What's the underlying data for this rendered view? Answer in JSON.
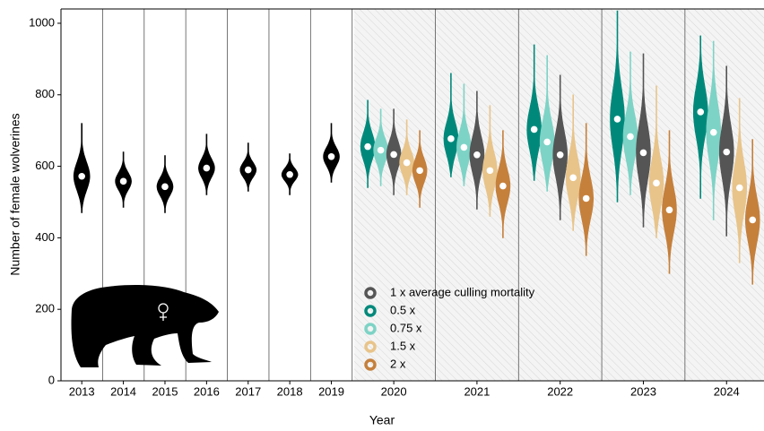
{
  "chart_data": {
    "type": "violin",
    "xlabel": "Year",
    "ylabel": "Number of female wolverines",
    "categories": [
      "2013",
      "2014",
      "2015",
      "2016",
      "2017",
      "2018",
      "2019",
      "2020",
      "2021",
      "2022",
      "2023",
      "2024"
    ],
    "ylim": [
      0,
      1040
    ],
    "yticks": [
      0,
      200,
      400,
      600,
      800,
      1000
    ],
    "legend_position": "lower center",
    "legend_order": [
      3,
      1,
      2,
      4,
      5
    ],
    "series": [
      {
        "color": "#000000",
        "values": [
          572,
          558,
          543,
          595,
          590,
          577,
          627,
          null,
          null,
          null,
          null,
          null
        ],
        "low": [
          470,
          485,
          470,
          520,
          530,
          520,
          555,
          null,
          null,
          null,
          null,
          null
        ],
        "high": [
          720,
          640,
          630,
          690,
          665,
          635,
          720,
          null,
          null,
          null,
          null,
          null
        ]
      },
      {
        "name": "0.5 x",
        "color": "#00897b",
        "values": [
          null,
          null,
          null,
          null,
          null,
          null,
          null,
          655,
          677,
          703,
          732,
          752
        ],
        "low": [
          null,
          null,
          null,
          null,
          null,
          null,
          null,
          540,
          570,
          560,
          500,
          510
        ],
        "high": [
          null,
          null,
          null,
          null,
          null,
          null,
          null,
          785,
          860,
          940,
          1035,
          965
        ]
      },
      {
        "name": "0.75 x",
        "color": "#7dd3c6",
        "values": [
          null,
          null,
          null,
          null,
          null,
          null,
          null,
          645,
          653,
          668,
          683,
          695
        ],
        "low": [
          null,
          null,
          null,
          null,
          null,
          null,
          null,
          545,
          545,
          530,
          520,
          450
        ],
        "high": [
          null,
          null,
          null,
          null,
          null,
          null,
          null,
          760,
          830,
          910,
          920,
          950
        ]
      },
      {
        "name": "1 x average culling mortality",
        "color": "#555555",
        "values": [
          null,
          null,
          null,
          null,
          null,
          null,
          null,
          633,
          632,
          632,
          638,
          640
        ],
        "low": [
          null,
          null,
          null,
          null,
          null,
          null,
          null,
          520,
          480,
          450,
          430,
          405
        ],
        "high": [
          null,
          null,
          null,
          null,
          null,
          null,
          null,
          760,
          810,
          855,
          915,
          880
        ]
      },
      {
        "name": "1.5 x",
        "color": "#e8c48a",
        "values": [
          null,
          null,
          null,
          null,
          null,
          null,
          null,
          610,
          588,
          568,
          553,
          540
        ],
        "low": [
          null,
          null,
          null,
          null,
          null,
          null,
          null,
          520,
          460,
          420,
          400,
          330
        ],
        "high": [
          null,
          null,
          null,
          null,
          null,
          null,
          null,
          730,
          770,
          800,
          825,
          790
        ]
      },
      {
        "name": "2 x",
        "color": "#c5803c",
        "values": [
          null,
          null,
          null,
          null,
          null,
          null,
          null,
          588,
          545,
          510,
          478,
          450
        ],
        "low": [
          null,
          null,
          null,
          null,
          null,
          null,
          null,
          485,
          400,
          350,
          300,
          270
        ],
        "high": [
          null,
          null,
          null,
          null,
          null,
          null,
          null,
          700,
          700,
          720,
          700,
          675
        ]
      }
    ]
  }
}
